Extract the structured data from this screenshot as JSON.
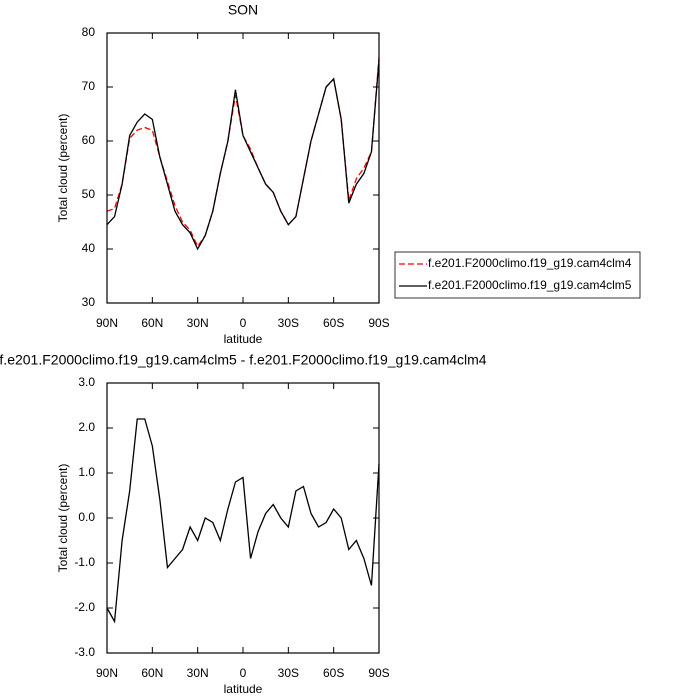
{
  "chart_data": [
    {
      "type": "line",
      "title": "SON",
      "x_label": "latitude",
      "y_label": "Total cloud (percent)",
      "x": [
        90,
        85,
        80,
        75,
        70,
        65,
        60,
        55,
        50,
        45,
        40,
        35,
        30,
        25,
        20,
        15,
        10,
        5,
        0,
        -5,
        -10,
        -15,
        -20,
        -25,
        -30,
        -35,
        -40,
        -45,
        -50,
        -55,
        -60,
        -65,
        -70,
        -75,
        -80,
        -85,
        -90
      ],
      "series": [
        {
          "name": "f.e201.F2000climo.f19_g19.cam4clm4",
          "color": "#ff0000",
          "linestyle": "dashed",
          "values": [
            47,
            47.5,
            52,
            60.5,
            62,
            62.5,
            62,
            57,
            52.5,
            48,
            45,
            43.5,
            40.5,
            42.5,
            47,
            54,
            60,
            68.5,
            61,
            58.5,
            55,
            52,
            50.5,
            47,
            44.5,
            46,
            53,
            60,
            65,
            70,
            71.5,
            64,
            49,
            53,
            55,
            58,
            75.5
          ]
        },
        {
          "name": "f.e201.F2000climo.f19_g19.cam4clm5",
          "color": "#000000",
          "linestyle": "solid",
          "values": [
            44.5,
            46,
            52,
            61,
            63.5,
            65,
            64,
            57,
            52,
            47,
            44.5,
            43,
            40,
            42.5,
            47,
            54,
            60,
            69.5,
            61,
            58,
            55,
            52,
            50.5,
            47,
            44.5,
            46,
            53,
            60,
            65,
            70,
            71.5,
            64,
            48.5,
            52,
            54,
            58,
            75
          ]
        }
      ],
      "xlim": [
        90,
        -90
      ],
      "xticks": [
        {
          "value": 90,
          "label": "90N"
        },
        {
          "value": 60,
          "label": "60N"
        },
        {
          "value": 30,
          "label": "30N"
        },
        0,
        {
          "value": -30,
          "label": "30S"
        },
        {
          "value": -60,
          "label": "60S"
        },
        {
          "value": -90,
          "label": "90S"
        }
      ],
      "ylim": [
        30,
        80
      ],
      "yticks": [
        30,
        40,
        50,
        60,
        70,
        80
      ],
      "legend": "outside-right"
    },
    {
      "type": "line",
      "title": "f.e201.F2000climo.f19_g19.cam4clm5 - f.e201.F2000climo.f19_g19.cam4clm4",
      "x_label": "latitude",
      "y_label": "Total cloud (percent)",
      "x": [
        90,
        85,
        80,
        75,
        70,
        65,
        60,
        55,
        50,
        45,
        40,
        35,
        30,
        25,
        20,
        15,
        10,
        5,
        0,
        -5,
        -10,
        -15,
        -20,
        -25,
        -30,
        -35,
        -40,
        -45,
        -50,
        -55,
        -60,
        -65,
        -70,
        -75,
        -80,
        -85,
        -90
      ],
      "series": [
        {
          "color": "#000000",
          "linestyle": "solid",
          "values": [
            -2.0,
            -2.3,
            -0.5,
            0.6,
            2.2,
            2.2,
            1.6,
            0.4,
            -1.1,
            -0.9,
            -0.7,
            -0.2,
            -0.5,
            0.0,
            -0.1,
            -0.5,
            0.2,
            0.8,
            0.9,
            -0.9,
            -0.3,
            0.1,
            0.3,
            0.0,
            -0.2,
            0.6,
            0.7,
            0.1,
            -0.2,
            -0.1,
            0.2,
            0.0,
            -0.7,
            -0.5,
            -0.9,
            -1.5,
            1.2
          ]
        }
      ],
      "xlim": [
        90,
        -90
      ],
      "xticks": [
        {
          "value": 90,
          "label": "90N"
        },
        {
          "value": 60,
          "label": "60N"
        },
        {
          "value": 30,
          "label": "30N"
        },
        0,
        {
          "value": -30,
          "label": "30S"
        },
        {
          "value": -60,
          "label": "60S"
        },
        {
          "value": -90,
          "label": "90S"
        }
      ],
      "ylim": [
        -3,
        3
      ],
      "yticks": [
        {
          "value": -3,
          "label": "-3.0"
        },
        {
          "value": -2,
          "label": "-2.0"
        },
        {
          "value": -1,
          "label": "-1.0"
        },
        {
          "value": 0,
          "label": "0.0"
        },
        {
          "value": 1,
          "label": "1.0"
        },
        {
          "value": 2,
          "label": "2.0"
        },
        {
          "value": 3,
          "label": "3.0"
        }
      ]
    }
  ]
}
